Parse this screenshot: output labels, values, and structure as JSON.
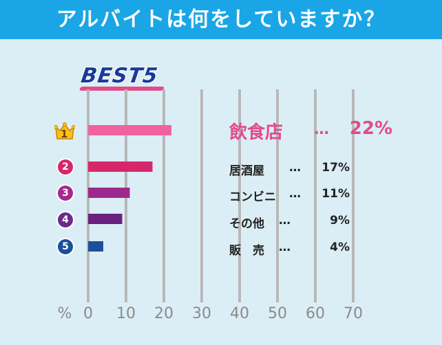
{
  "header": {
    "title": "アルバイトは何をしていますか？",
    "background": "#1aa6e6"
  },
  "badge": {
    "text": "BEST5"
  },
  "ranks": [
    "1",
    "2",
    "3",
    "4",
    "5"
  ],
  "rank_colors": [
    "#f5a623",
    "#d6276a",
    "#a3298f",
    "#6b2a8a",
    "#1d4e9a"
  ],
  "chart_data": {
    "type": "bar",
    "orientation": "horizontal",
    "categories": [
      "飲食店",
      "居酒屋",
      "コンビニ",
      "その他",
      "販　売"
    ],
    "values": [
      22,
      17,
      11,
      9,
      4
    ],
    "value_labels": [
      "22%",
      "17%",
      "11%",
      "9%",
      "4%"
    ],
    "colors": [
      "#f062a0",
      "#d6276a",
      "#9c2a8c",
      "#6b1f7e",
      "#1d4e9a"
    ],
    "xlim": [
      0,
      70
    ],
    "xticks": [
      "0",
      "10",
      "20",
      "30",
      "40",
      "50",
      "60",
      "70"
    ],
    "xlabel": "%",
    "grid": true
  },
  "separator": "…"
}
